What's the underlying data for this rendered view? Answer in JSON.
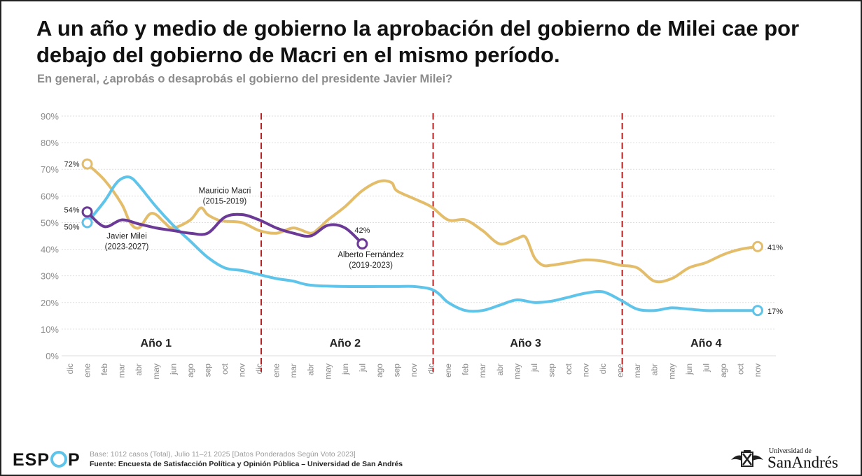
{
  "title": "A un año y medio de gobierno la aprobación del gobierno de Milei cae por debajo del gobierno de Macri en el mismo período.",
  "subtitle": "En general, ¿aprobás o desaprobás el gobierno del presidente Javier Milei?",
  "footer": {
    "base": "Base: 1012 casos (Total), Julio 11–21 2025 [Datos Ponderados Según Voto 2023]",
    "source": "Fuente: Encuesta de Satisfacción Política y Opinión Pública – Universidad de San Andrés"
  },
  "brand": {
    "espop_left": "ESP",
    "espop_right": "P",
    "accent": "#5ec4ea"
  },
  "logo": {
    "line1": "Universidad de",
    "line2": "SanAndrés",
    "icon": "crest-icon"
  },
  "colors": {
    "macri": "#e3bd6a",
    "fernandez": "#5ec4ea",
    "milei": "#6b3a96",
    "divider": "#b22222",
    "grid": "#dddddd",
    "axis_text": "#8c8c8c"
  },
  "chart_data": {
    "type": "line",
    "y_ticks": [
      "0%",
      "10%",
      "20%",
      "30%",
      "40%",
      "50%",
      "60%",
      "70%",
      "80%",
      "90%"
    ],
    "ylim": [
      0,
      90
    ],
    "grid": true,
    "months": [
      "dic",
      "ene",
      "feb",
      "mar",
      "abr",
      "may",
      "jun",
      "ago",
      "sep",
      "oct",
      "nov",
      "dic",
      "ene",
      "mar",
      "abr",
      "may",
      "jun",
      "jul",
      "ago",
      "sep",
      "nov",
      "dic",
      "ene",
      "feb",
      "mar",
      "abr",
      "may",
      "jul",
      "sep",
      "oct",
      "nov",
      "dic",
      "ene",
      "mar",
      "abr",
      "may",
      "jun",
      "jul",
      "ago",
      "oct",
      "nov"
    ],
    "year_labels": [
      {
        "label": "Año 1",
        "x": 5
      },
      {
        "label": "Año 2",
        "x": 16
      },
      {
        "label": "Año 3",
        "x": 26.5
      },
      {
        "label": "Año 4",
        "x": 37
      }
    ],
    "dividers": [
      11,
      21,
      32
    ],
    "series": [
      {
        "name": "Mauricio Macri",
        "sublabel": "(2015-2019)",
        "color_key": "macri",
        "x": [
          1,
          2,
          3,
          3.5,
          4,
          4.6,
          5,
          5.5,
          6,
          7,
          7.6,
          8,
          8.6,
          9,
          10,
          11,
          12,
          13,
          14,
          14.5,
          15,
          16,
          17,
          18,
          18.7,
          19,
          20,
          21,
          22,
          23,
          24,
          25,
          26,
          26.5,
          27,
          27.5,
          28,
          29,
          30,
          31,
          32,
          33,
          34,
          35,
          36,
          37,
          38,
          39,
          40
        ],
        "y": [
          72,
          66,
          57,
          50,
          48,
          53,
          53,
          50,
          48,
          51,
          55.5,
          53,
          51,
          50.5,
          50,
          47,
          46,
          48,
          46,
          48,
          51,
          56,
          62,
          65.5,
          65,
          62,
          59,
          56,
          51,
          51,
          47,
          42,
          44,
          44.5,
          37,
          34,
          34,
          35,
          36,
          35.5,
          34,
          33,
          28,
          29,
          33,
          35,
          38,
          40,
          41
        ]
      },
      {
        "name": "Alberto Fernández",
        "sublabel": "(2019-2023)",
        "color_key": "fernandez",
        "x": [
          1,
          2,
          2.6,
          3,
          3.5,
          4,
          5,
          6,
          7,
          8,
          9,
          10,
          11,
          12,
          13,
          14,
          16,
          18,
          19,
          20,
          21,
          21.5,
          22,
          23,
          24,
          25,
          26,
          27,
          28,
          29,
          30,
          31,
          32,
          33,
          34,
          35,
          36,
          37,
          38,
          39,
          40
        ],
        "y": [
          50,
          58,
          64,
          66.5,
          67,
          64,
          56,
          49,
          43,
          37,
          33,
          32,
          30.5,
          29,
          28,
          26.5,
          26,
          26,
          26,
          26,
          25,
          23,
          20,
          17,
          17,
          19,
          21,
          20,
          20.5,
          22,
          23.5,
          24,
          21,
          17.5,
          17,
          18,
          17.5,
          17,
          17,
          17,
          17
        ]
      },
      {
        "name": "Javier Milei",
        "sublabel": "(2023-2027)",
        "color_key": "milei",
        "x": [
          1,
          2,
          3,
          4,
          5,
          6,
          7,
          8,
          9,
          10,
          11,
          12,
          13,
          14,
          15,
          16,
          17
        ],
        "y": [
          54,
          48.5,
          51,
          49.5,
          48,
          47,
          46,
          46,
          52,
          53,
          51,
          48,
          46,
          45,
          49,
          48,
          42
        ]
      }
    ],
    "point_labels": [
      {
        "series": 0,
        "index": 0,
        "text": "72%"
      },
      {
        "series": 1,
        "index": 0,
        "text": "50%"
      },
      {
        "series": 2,
        "index": 0,
        "text": "54%"
      },
      {
        "series": 2,
        "index": 16,
        "text": "42%"
      },
      {
        "series": 0,
        "index": 48,
        "text": "41%"
      },
      {
        "series": 1,
        "index": 40,
        "text": "17%"
      }
    ],
    "series_labels": [
      {
        "series": 0,
        "x": 9,
        "y": 61
      },
      {
        "series": 1,
        "x": 17.5,
        "y": 37
      },
      {
        "series": 2,
        "x": 3.3,
        "y": 44
      }
    ]
  }
}
